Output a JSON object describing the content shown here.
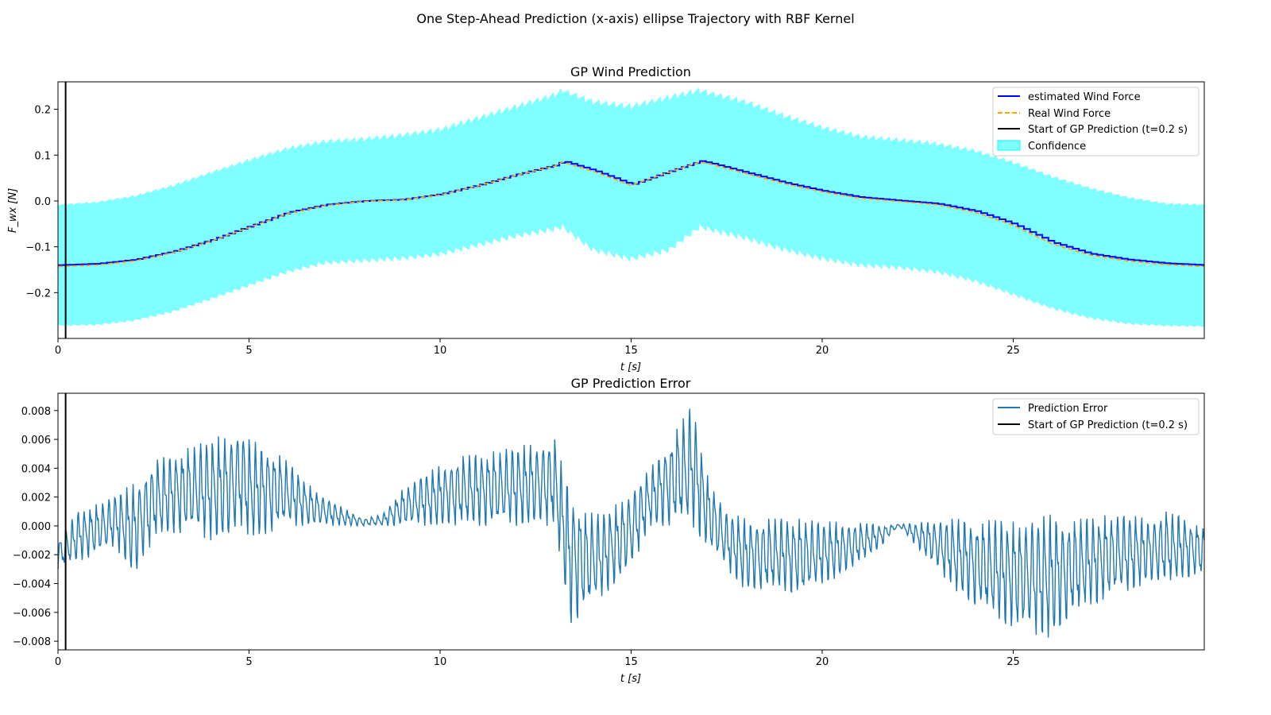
{
  "figure_title": "One Step-Ahead Prediction (x-axis) ellipse Trajectory with RBF Kernel",
  "colors": {
    "estimate": "#0000ff",
    "real": "#ffa500",
    "confidence": "#00ffff",
    "error": "#1f77b4",
    "start_line": "#000000"
  },
  "chart_data": [
    {
      "type": "line",
      "title": "GP Wind Prediction",
      "xlabel": "t [s]",
      "ylabel": "F_wx [N]",
      "xlim": [
        0,
        30
      ],
      "ylim": [
        -0.3,
        0.26
      ],
      "xticks": [
        0,
        5,
        10,
        15,
        20,
        25
      ],
      "xtick_labels": [
        "0",
        "5",
        "10",
        "15",
        "20",
        "25"
      ],
      "yticks": [
        -0.2,
        -0.1,
        0.0,
        0.1,
        0.2
      ],
      "ytick_labels": [
        "−0.2",
        "−0.1",
        "0.0",
        "0.1",
        "0.2"
      ],
      "grid": false,
      "legend_position": "top-right",
      "vline_x": 0.2,
      "x": [
        0,
        1,
        2,
        3,
        4,
        5,
        6,
        7,
        8,
        9,
        10,
        11,
        12,
        13,
        13.2,
        14,
        15,
        16,
        16.8,
        17,
        18,
        19,
        20,
        21,
        22,
        23,
        24,
        25,
        26,
        27,
        28,
        29,
        30
      ],
      "series": [
        {
          "name": "estimated Wind Force",
          "style": "solid",
          "values": [
            -0.14,
            -0.137,
            -0.128,
            -0.11,
            -0.085,
            -0.055,
            -0.025,
            -0.008,
            0.0,
            0.003,
            0.015,
            0.035,
            0.058,
            0.078,
            0.087,
            0.067,
            0.036,
            0.065,
            0.087,
            0.084,
            0.062,
            0.04,
            0.022,
            0.008,
            0.001,
            -0.006,
            -0.022,
            -0.05,
            -0.09,
            -0.115,
            -0.128,
            -0.136,
            -0.14
          ]
        },
        {
          "name": "Real Wind Force",
          "style": "dashed",
          "values": [
            -0.143,
            -0.14,
            -0.131,
            -0.113,
            -0.088,
            -0.058,
            -0.028,
            -0.01,
            -0.001,
            0.002,
            0.013,
            0.033,
            0.056,
            0.076,
            0.085,
            0.065,
            0.034,
            0.063,
            0.085,
            0.082,
            0.06,
            0.038,
            0.02,
            0.006,
            -0.001,
            -0.008,
            -0.025,
            -0.053,
            -0.093,
            -0.118,
            -0.131,
            -0.139,
            -0.143
          ]
        }
      ],
      "confidence": {
        "name": "Confidence",
        "upper": [
          -0.01,
          -0.005,
          0.008,
          0.03,
          0.058,
          0.085,
          0.11,
          0.125,
          0.13,
          0.138,
          0.15,
          0.175,
          0.2,
          0.225,
          0.235,
          0.21,
          0.2,
          0.22,
          0.235,
          0.23,
          0.21,
          0.18,
          0.155,
          0.135,
          0.128,
          0.12,
          0.105,
          0.08,
          0.05,
          0.025,
          0.005,
          -0.008,
          -0.01
        ],
        "lower": [
          -0.27,
          -0.268,
          -0.258,
          -0.238,
          -0.21,
          -0.18,
          -0.15,
          -0.13,
          -0.125,
          -0.12,
          -0.11,
          -0.09,
          -0.07,
          -0.055,
          -0.05,
          -0.1,
          -0.12,
          -0.1,
          -0.05,
          -0.055,
          -0.075,
          -0.1,
          -0.12,
          -0.135,
          -0.14,
          -0.15,
          -0.17,
          -0.2,
          -0.23,
          -0.252,
          -0.265,
          -0.27,
          -0.272
        ]
      },
      "legend": [
        "estimated Wind Force",
        "Real Wind Force",
        "Start of GP Prediction (t=0.2 s)",
        "Confidence"
      ]
    },
    {
      "type": "line",
      "title": "GP Prediction Error",
      "xlabel": "t [s]",
      "ylabel": "",
      "xlim": [
        0,
        30
      ],
      "ylim": [
        -0.0086,
        0.0092
      ],
      "xticks": [
        0,
        5,
        10,
        15,
        20,
        25
      ],
      "xtick_labels": [
        "0",
        "5",
        "10",
        "15",
        "20",
        "25"
      ],
      "yticks": [
        -0.008,
        -0.006,
        -0.004,
        -0.002,
        0.0,
        0.002,
        0.004,
        0.006,
        0.008
      ],
      "ytick_labels": [
        "−0.008",
        "−0.006",
        "−0.004",
        "−0.002",
        "0.000",
        "0.002",
        "0.004",
        "0.006",
        "0.008"
      ],
      "grid": false,
      "legend_position": "top-right",
      "vline_x": 0.2,
      "x": [
        0,
        0.5,
        1,
        1.5,
        2,
        2.5,
        3,
        3.5,
        4,
        4.5,
        4.8,
        5,
        5.5,
        6,
        6.5,
        7,
        7.5,
        8,
        8.5,
        9,
        9.5,
        10,
        10.5,
        11,
        11.5,
        12,
        12.5,
        13,
        13.4,
        13.8,
        14.2,
        14.6,
        15,
        15.5,
        16,
        16.6,
        17,
        17.5,
        18,
        18.5,
        19,
        19.5,
        20,
        20.5,
        21,
        21.5,
        22,
        22.5,
        23,
        23.5,
        24,
        24.5,
        25,
        25.5,
        26,
        26.5,
        27,
        27.5,
        28,
        28.5,
        29,
        29.5,
        30
      ],
      "series": [
        {
          "name": "Prediction Error",
          "upper": [
            -0.001,
            0.001,
            0.0015,
            0.0022,
            0.003,
            0.0045,
            0.005,
            0.0055,
            0.006,
            0.0065,
            0.0068,
            0.006,
            0.0055,
            0.0045,
            0.003,
            0.002,
            0.0012,
            0.0005,
            0.0008,
            0.0025,
            0.0035,
            0.0042,
            0.0048,
            0.005,
            0.0052,
            0.0055,
            0.0058,
            0.006,
            0.0025,
            0.001,
            0.0008,
            0.0015,
            0.0025,
            0.004,
            0.006,
            0.0084,
            0.0035,
            0.001,
            0.0005,
            0.0005,
            0.0005,
            0.0005,
            0.0003,
            0.0003,
            0.0002,
            0.0001,
            0.0001,
            0.0002,
            0.0005,
            0.0005,
            0.0004,
            0.0004,
            0.0003,
            0.0005,
            0.0008,
            0.0005,
            0.0005,
            0.0008,
            0.0008,
            0.0005,
            0.001,
            0.0005,
            0.0
          ],
          "lower": [
            -0.003,
            -0.0025,
            -0.002,
            -0.0015,
            -0.0035,
            -0.001,
            -0.0005,
            -0.0005,
            -0.001,
            -0.001,
            0.0,
            -0.001,
            -0.0005,
            0.0,
            0.0,
            0.0,
            0.0,
            0.0,
            0.0,
            0.0,
            0.0,
            0.0,
            0.0,
            0.0,
            0.0,
            0.0,
            0.0,
            0.0,
            -0.0068,
            -0.006,
            -0.005,
            -0.004,
            -0.003,
            0.0,
            0.0,
            0.0,
            -0.0015,
            -0.003,
            -0.0045,
            -0.0045,
            -0.0045,
            -0.0048,
            -0.004,
            -0.0035,
            -0.0025,
            -0.0015,
            0.0,
            -0.0015,
            -0.003,
            -0.0045,
            -0.0055,
            -0.0065,
            -0.007,
            -0.0075,
            -0.0078,
            -0.0065,
            -0.0055,
            -0.005,
            -0.0045,
            -0.004,
            -0.004,
            -0.0035,
            -0.0035
          ]
        }
      ],
      "legend": [
        "Prediction Error",
        "Start of GP Prediction (t=0.2 s)"
      ]
    }
  ]
}
